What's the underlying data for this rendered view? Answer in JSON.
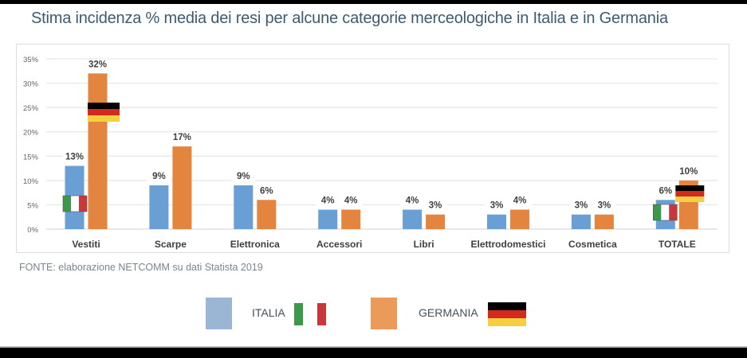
{
  "title": "Stima incidenza % media dei resi per alcune categorie merceologiche in Italia e in Germania",
  "source": "FONTE: elaborazione NETCOMM su dati Statista 2019",
  "colors": {
    "italia": "#6a9fd5",
    "germania": "#e4853f",
    "italia_legend": "#9bb5d5",
    "germania_legend": "#eb9a59",
    "title": "#3d5a73",
    "grid": "#e6e6e6",
    "flag_green": "#3a9a4a",
    "flag_white": "#ffffff",
    "flag_red": "#c8383a",
    "flag_black": "#000000",
    "flag_de_red": "#d42a1e",
    "flag_gold": "#f6cf41"
  },
  "legend": {
    "items": [
      {
        "label": "ITALIA",
        "flag": "italy-flag-icon"
      },
      {
        "label": "GERMANIA",
        "flag": "germany-flag-icon"
      }
    ]
  },
  "chart_data": {
    "type": "bar",
    "title": "Stima incidenza % media dei resi per alcune categorie merceologiche in Italia e in Germania",
    "xlabel": "",
    "ylabel": "",
    "ylim": [
      0,
      35
    ],
    "yticks": [
      0,
      5,
      10,
      15,
      20,
      25,
      30,
      35
    ],
    "ytick_labels": [
      "0%",
      "5%",
      "10%",
      "15%",
      "20%",
      "25%",
      "30%",
      "35%"
    ],
    "grid": true,
    "legend_position": "bottom",
    "categories": [
      "Vestiti",
      "Scarpe",
      "Elettronica",
      "Accessori",
      "Libri",
      "Elettrodomestici",
      "Cosmetica",
      "TOTALE"
    ],
    "series": [
      {
        "name": "ITALIA",
        "values": [
          13,
          9,
          9,
          4,
          4,
          3,
          3,
          6
        ],
        "labels": [
          "13%",
          "9%",
          "9%",
          "4%",
          "4%",
          "3%",
          "3%",
          "6%"
        ]
      },
      {
        "name": "GERMANIA",
        "values": [
          32,
          17,
          6,
          4,
          3,
          4,
          3,
          10
        ],
        "labels": [
          "32%",
          "17%",
          "6%",
          "4%",
          "3%",
          "4%",
          "3%",
          "10%"
        ]
      }
    ],
    "annotations": [
      {
        "type": "flag",
        "country": "Italia",
        "category": "Vestiti",
        "series": "ITALIA"
      },
      {
        "type": "flag",
        "country": "Germania",
        "category": "Vestiti",
        "series": "GERMANIA"
      },
      {
        "type": "flag",
        "country": "Italia",
        "category": "TOTALE",
        "series": "ITALIA"
      },
      {
        "type": "flag",
        "country": "Germania",
        "category": "TOTALE",
        "series": "GERMANIA"
      }
    ]
  }
}
